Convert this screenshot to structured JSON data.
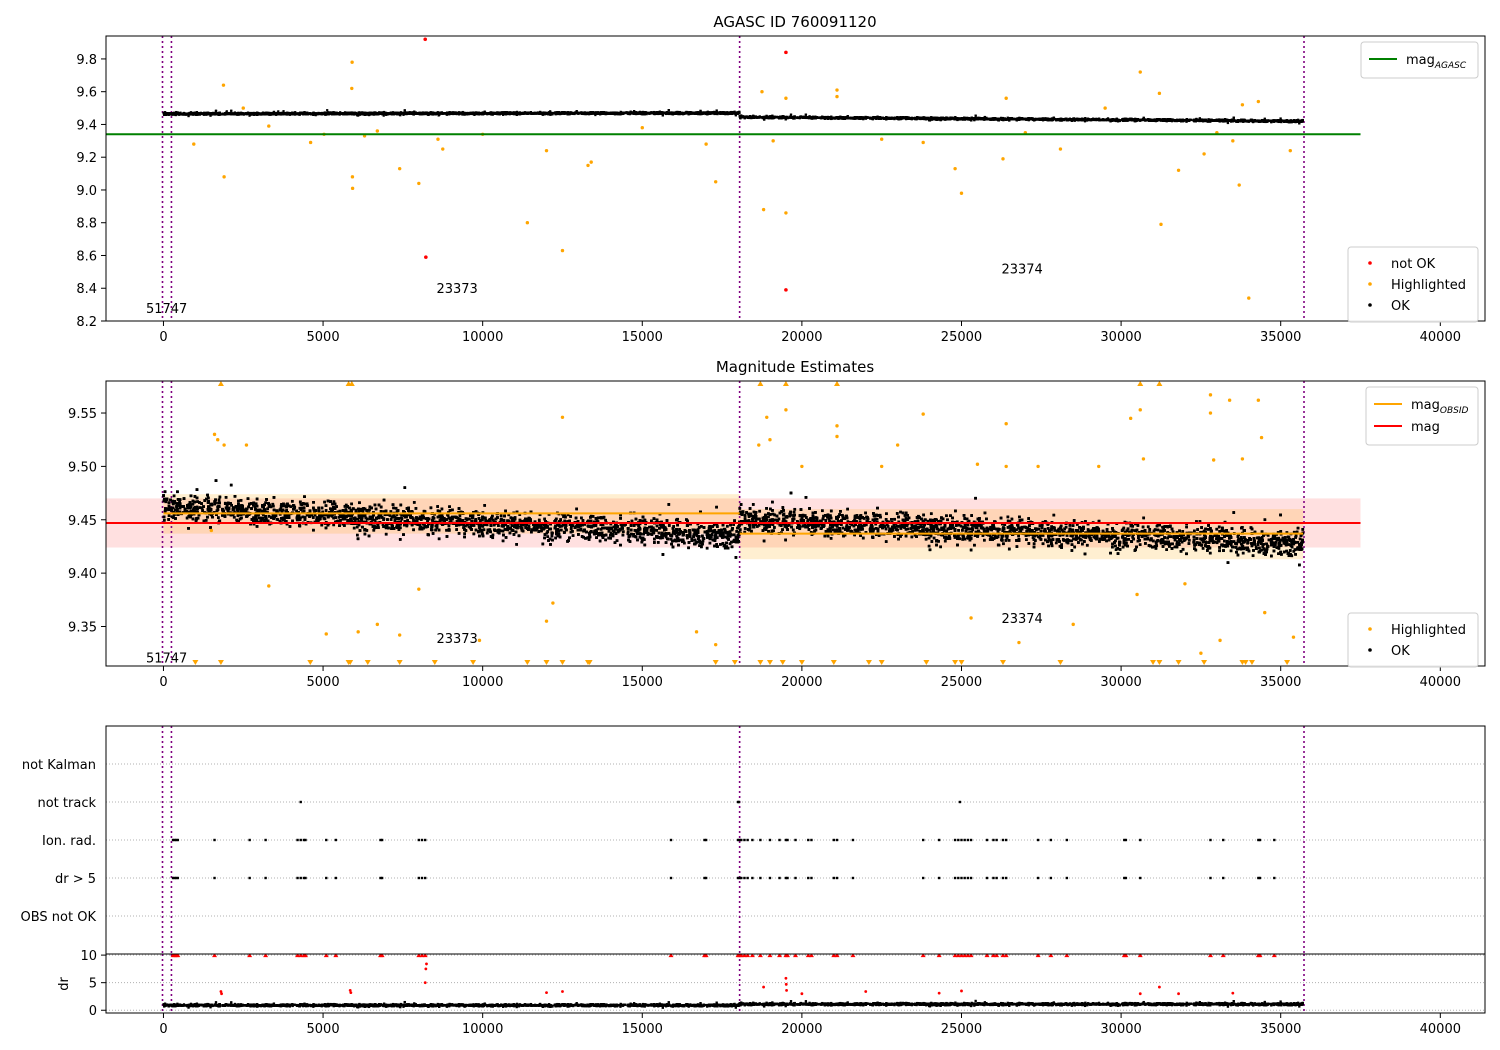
{
  "chart_data": [
    {
      "type": "scatter",
      "title": "AGASC ID 760091120",
      "xlim": [
        -1800,
        41400
      ],
      "ylim": [
        8.2,
        9.94
      ],
      "xticks": [
        0,
        5000,
        10000,
        15000,
        20000,
        25000,
        30000,
        35000,
        40000
      ],
      "xtick_labels": [
        "0",
        "5000",
        "10000",
        "15000",
        "20000",
        "25000",
        "30000",
        "35000",
        "40000"
      ],
      "yticks": [
        8.2,
        8.4,
        8.6,
        8.8,
        9.0,
        9.2,
        9.4,
        9.6,
        9.8
      ],
      "ytick_labels": [
        "8.2",
        "8.4",
        "8.6",
        "8.8",
        "9.0",
        "9.2",
        "9.4",
        "9.6",
        "9.8"
      ],
      "vlines": [
        -30,
        250,
        18050,
        35730
      ],
      "obs_labels": [
        {
          "text": "51747",
          "x": 100,
          "y": 8.28
        },
        {
          "text": "23373",
          "x": 9200,
          "y": 8.4
        },
        {
          "text": "23374",
          "x": 26900,
          "y": 8.52
        }
      ],
      "hlines": [
        {
          "name": "mag_AGASC",
          "y": 9.34,
          "x": [
            -1800,
            37500
          ],
          "color": "#008000"
        }
      ],
      "ok_band": {
        "segments": [
          [
            0,
            18050,
            9.465,
            9.47
          ],
          [
            18050,
            35700,
            9.445,
            9.42
          ]
        ],
        "halfwidth": 0.02
      },
      "highlighted": [
        [
          950,
          9.28
        ],
        [
          1880,
          9.64
        ],
        [
          1900,
          9.08
        ],
        [
          4610,
          9.29
        ],
        [
          5030,
          9.34
        ],
        [
          5900,
          9.62
        ],
        [
          5910,
          9.78
        ],
        [
          5920,
          9.08
        ],
        [
          5925,
          9.01
        ],
        [
          6300,
          9.33
        ],
        [
          6700,
          9.36
        ],
        [
          7400,
          9.13
        ],
        [
          8000,
          9.04
        ],
        [
          8600,
          9.31
        ],
        [
          8750,
          9.25
        ],
        [
          10000,
          9.34
        ],
        [
          11400,
          8.8
        ],
        [
          12000,
          9.24
        ],
        [
          12500,
          8.63
        ],
        [
          13300,
          9.15
        ],
        [
          13400,
          9.17
        ],
        [
          17300,
          9.05
        ],
        [
          17000,
          9.28
        ],
        [
          18750,
          9.6
        ],
        [
          18800,
          8.88
        ],
        [
          19100,
          9.3
        ],
        [
          19500,
          8.86
        ],
        [
          19500,
          9.56
        ],
        [
          21100,
          9.61
        ],
        [
          21100,
          9.57
        ],
        [
          22500,
          9.31
        ],
        [
          23800,
          9.29
        ],
        [
          24800,
          9.13
        ],
        [
          25000,
          8.98
        ],
        [
          26300,
          9.19
        ],
        [
          26400,
          9.56
        ],
        [
          28100,
          9.25
        ],
        [
          30600,
          9.72
        ],
        [
          31200,
          9.59
        ],
        [
          31250,
          8.79
        ],
        [
          31800,
          9.12
        ],
        [
          32600,
          9.22
        ],
        [
          33700,
          9.03
        ],
        [
          33800,
          9.52
        ],
        [
          34000,
          8.34
        ],
        [
          34300,
          9.54
        ],
        [
          35300,
          9.24
        ],
        [
          2500,
          9.5
        ],
        [
          3300,
          9.39
        ],
        [
          15000,
          9.38
        ],
        [
          27000,
          9.35
        ],
        [
          29500,
          9.5
        ],
        [
          33000,
          9.35
        ],
        [
          33500,
          9.3
        ]
      ],
      "not_ok": [
        [
          8200,
          9.92
        ],
        [
          8220,
          8.59
        ],
        [
          19500,
          9.84
        ],
        [
          19500,
          8.39
        ]
      ],
      "legend_lines": [
        {
          "label_main": "mag",
          "label_sub": "AGASC",
          "color": "#008000"
        }
      ],
      "legend_points": [
        {
          "label": "not OK",
          "color": "#ff0000"
        },
        {
          "label": "Highlighted",
          "color": "#ffa500"
        },
        {
          "label": "OK",
          "color": "#000000"
        }
      ]
    },
    {
      "type": "scatter",
      "title": "Magnitude Estimates",
      "xlim": [
        -1800,
        41400
      ],
      "ylim": [
        9.313,
        9.58
      ],
      "xticks": [
        0,
        5000,
        10000,
        15000,
        20000,
        25000,
        30000,
        35000,
        40000
      ],
      "xtick_labels": [
        "0",
        "5000",
        "10000",
        "15000",
        "20000",
        "25000",
        "30000",
        "35000",
        "40000"
      ],
      "yticks": [
        9.35,
        9.4,
        9.45,
        9.5,
        9.55
      ],
      "ytick_labels": [
        "9.35",
        "9.40",
        "9.45",
        "9.50",
        "9.55"
      ],
      "vlines": [
        -30,
        250,
        18050,
        35730
      ],
      "obs_labels": [
        {
          "text": "51747",
          "x": 100,
          "y": 9.321
        },
        {
          "text": "23373",
          "x": 9200,
          "y": 9.339
        },
        {
          "text": "23374",
          "x": 26900,
          "y": 9.358
        }
      ],
      "mag": {
        "y": 9.447,
        "band": [
          9.424,
          9.47
        ],
        "x": [
          -1800,
          37500
        ],
        "color": "#ff0000"
      },
      "mag_obsid": [
        {
          "x": [
            0,
            18050
          ],
          "y": 9.456,
          "band": [
            9.437,
            9.474
          ]
        },
        {
          "x": [
            18050,
            35700
          ],
          "y": 9.437,
          "band": [
            9.413,
            9.46
          ]
        }
      ],
      "ok_band": {
        "segments": [
          [
            0,
            18050,
            9.462,
            9.435
          ],
          [
            18050,
            35700,
            9.45,
            9.428
          ]
        ],
        "halfwidth": 0.028
      },
      "highlighted": [
        [
          1500,
          9.44
        ],
        [
          1600,
          9.53
        ],
        [
          1700,
          9.525
        ],
        [
          1900,
          9.52
        ],
        [
          2600,
          9.52
        ],
        [
          3300,
          9.388
        ],
        [
          5100,
          9.343
        ],
        [
          6100,
          9.345
        ],
        [
          6700,
          9.352
        ],
        [
          7400,
          9.342
        ],
        [
          8000,
          9.385
        ],
        [
          9900,
          9.337
        ],
        [
          12000,
          9.355
        ],
        [
          12200,
          9.372
        ],
        [
          12500,
          9.546
        ],
        [
          16700,
          9.345
        ],
        [
          17300,
          9.333
        ],
        [
          18650,
          9.52
        ],
        [
          18900,
          9.546
        ],
        [
          19000,
          9.525
        ],
        [
          19500,
          9.553
        ],
        [
          20000,
          9.5
        ],
        [
          21100,
          9.538
        ],
        [
          21100,
          9.528
        ],
        [
          22500,
          9.5
        ],
        [
          23000,
          9.52
        ],
        [
          23800,
          9.549
        ],
        [
          25300,
          9.358
        ],
        [
          25500,
          9.502
        ],
        [
          26400,
          9.54
        ],
        [
          26400,
          9.5
        ],
        [
          26800,
          9.335
        ],
        [
          27400,
          9.5
        ],
        [
          28500,
          9.352
        ],
        [
          29300,
          9.5
        ],
        [
          30300,
          9.545
        ],
        [
          30500,
          9.38
        ],
        [
          30600,
          9.553
        ],
        [
          30700,
          9.507
        ],
        [
          32000,
          9.39
        ],
        [
          32500,
          9.325
        ],
        [
          32800,
          9.567
        ],
        [
          32800,
          9.55
        ],
        [
          32900,
          9.506
        ],
        [
          33100,
          9.337
        ],
        [
          33400,
          9.562
        ],
        [
          33800,
          9.507
        ],
        [
          34300,
          9.562
        ],
        [
          34400,
          9.527
        ],
        [
          34500,
          9.363
        ],
        [
          35400,
          9.34
        ]
      ],
      "arrows_top": [
        1800,
        5800,
        5900,
        18700,
        19500,
        21100,
        30600,
        31200
      ],
      "arrows_bottom": [
        1000,
        1800,
        4600,
        5800,
        5850,
        6400,
        7400,
        8500,
        9700,
        11400,
        12000,
        12500,
        13300,
        13350,
        17300,
        17900,
        18700,
        19000,
        19400,
        20000,
        21000,
        22100,
        22500,
        23900,
        24800,
        25000,
        26300,
        28100,
        31000,
        31200,
        31800,
        32600,
        33800,
        33900,
        34100,
        35200
      ],
      "legend_lines": [
        {
          "label_main": "mag",
          "label_sub": "OBSID",
          "color": "#ffa500"
        },
        {
          "label_main": "mag",
          "label_sub": "",
          "color": "#ff0000"
        }
      ],
      "legend_points": [
        {
          "label": "Highlighted",
          "color": "#ffa500"
        },
        {
          "label": "OK",
          "color": "#000000"
        }
      ]
    },
    {
      "type": "scatter",
      "title": "",
      "xlim": [
        -1800,
        41400
      ],
      "categories": [
        "not Kalman",
        "not track",
        "Ion. rad.",
        "dr > 5",
        "OBS not OK"
      ],
      "vlines": [
        -30,
        250,
        18050,
        35730
      ],
      "events": {
        "not track": [
          4300,
          18000,
          18030,
          24950
        ],
        "Ion. rad.": [
          300,
          350,
          400,
          450,
          1600,
          2700,
          3200,
          4200,
          4300,
          4400,
          4450,
          5100,
          5400,
          6800,
          6850,
          8000,
          8100,
          8200,
          15900,
          16950,
          17000,
          18000,
          18050,
          18100,
          18200,
          18300,
          18450,
          18700,
          19000,
          19300,
          19500,
          19550,
          19800,
          20200,
          20300,
          21000,
          21100,
          21600,
          23800,
          24300,
          24800,
          24900,
          25000,
          25100,
          25200,
          25300,
          25800,
          26000,
          26100,
          26300,
          26400,
          27400,
          27800,
          28300,
          30100,
          30150,
          30600,
          32800,
          33200,
          34300,
          34350,
          34800
        ],
        "dr > 5": [
          300,
          350,
          400,
          450,
          1600,
          2700,
          3200,
          4200,
          4300,
          4400,
          4450,
          5100,
          5400,
          6800,
          6850,
          8000,
          8100,
          8200,
          15900,
          16950,
          17000,
          18000,
          18050,
          18100,
          18200,
          18300,
          18450,
          18700,
          19000,
          19300,
          19500,
          19550,
          19800,
          20200,
          20300,
          21000,
          21100,
          21600,
          23800,
          24300,
          24800,
          24900,
          25000,
          25100,
          25200,
          25300,
          25800,
          26000,
          26100,
          26300,
          26400,
          27400,
          27800,
          28300,
          30100,
          30150,
          30600,
          32800,
          33200,
          34300,
          34350,
          34800
        ],
        "OBS not OK": []
      }
    },
    {
      "type": "scatter",
      "title": "",
      "ylabel": "dr",
      "xlim": [
        -1800,
        41400
      ],
      "ylim": [
        -0.5,
        10.2
      ],
      "xticks": [
        0,
        5000,
        10000,
        15000,
        20000,
        25000,
        30000,
        35000,
        40000
      ],
      "xtick_labels": [
        "0",
        "5000",
        "10000",
        "15000",
        "20000",
        "25000",
        "30000",
        "35000",
        "40000"
      ],
      "yticks": [
        0,
        5,
        10
      ],
      "ytick_labels": [
        "0",
        "5",
        "10"
      ],
      "vlines": [
        -30,
        250,
        18050,
        35730
      ],
      "ok_band": {
        "segments": [
          [
            0,
            18050,
            0.9,
            0.9
          ],
          [
            18050,
            35700,
            1.1,
            1.1
          ]
        ],
        "halfwidth": 0.6
      },
      "clipped_red": [
        300,
        350,
        400,
        450,
        1600,
        2700,
        3200,
        4200,
        4300,
        4400,
        4450,
        5100,
        5400,
        6800,
        6850,
        8000,
        8100,
        8200,
        15900,
        16950,
        17000,
        18000,
        18050,
        18100,
        18200,
        18300,
        18450,
        18700,
        19000,
        19300,
        19500,
        19550,
        19800,
        20200,
        20300,
        21000,
        21100,
        21600,
        23800,
        24300,
        24800,
        24900,
        25000,
        25100,
        25200,
        25300,
        25800,
        26000,
        26100,
        26300,
        26400,
        27400,
        27800,
        28300,
        30100,
        30150,
        30600,
        32800,
        33200,
        34300,
        34350,
        34800
      ],
      "red_points": [
        [
          1800,
          3.4
        ],
        [
          1820,
          3.0
        ],
        [
          5850,
          3.6
        ],
        [
          5870,
          3.2
        ],
        [
          8200,
          5.0
        ],
        [
          8220,
          7.5
        ],
        [
          8240,
          8.4
        ],
        [
          12000,
          3.2
        ],
        [
          12500,
          3.4
        ],
        [
          18800,
          4.2
        ],
        [
          19500,
          5.8
        ],
        [
          19510,
          4.7
        ],
        [
          19520,
          3.6
        ],
        [
          20000,
          3.0
        ],
        [
          22000,
          3.4
        ],
        [
          24300,
          3.1
        ],
        [
          25000,
          3.5
        ],
        [
          30600,
          3.0
        ],
        [
          31200,
          4.2
        ],
        [
          31800,
          3.0
        ],
        [
          33500,
          3.1
        ]
      ]
    }
  ]
}
